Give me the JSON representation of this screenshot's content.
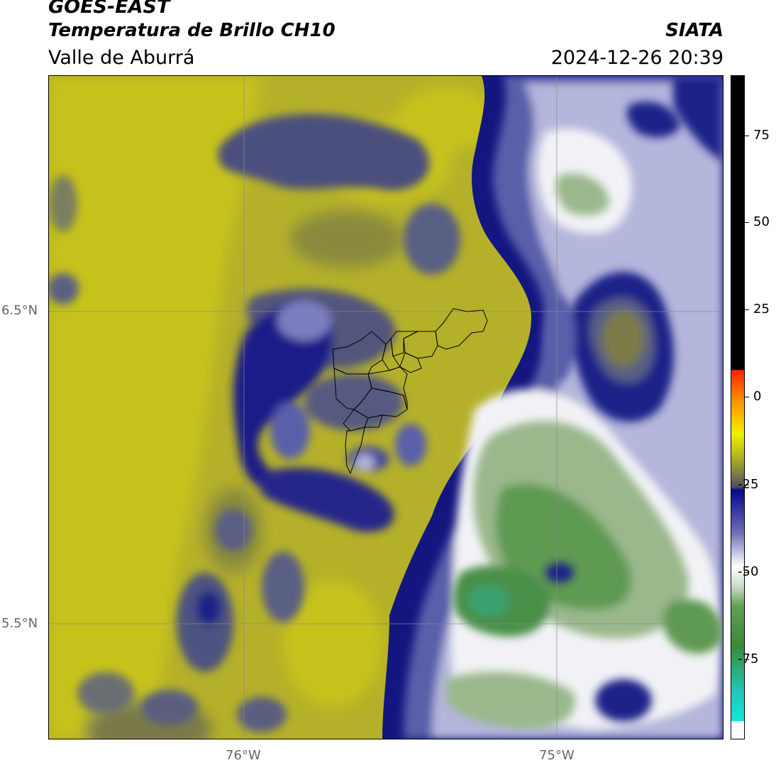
{
  "header": {
    "satellite": "GOES-EAST",
    "product": "Temperatura de Brillo CH10",
    "region": "Valle de Aburrá",
    "organization": "SIATA",
    "datetime": "2024-12-26 20:39"
  },
  "map": {
    "lat_ticks": [
      "6.5°N",
      "5.5°N"
    ],
    "lon_ticks": [
      "76°W",
      "75°W"
    ],
    "gridlines": true,
    "overlay": "municipality-boundaries"
  },
  "colorbar": {
    "ticks": [
      "75",
      "50",
      "25",
      "0",
      "-25",
      "-50",
      "-75"
    ],
    "range": [
      -92,
      92
    ],
    "colors": {
      "black": "#000000",
      "red": "#ff2000",
      "orange": "#ff9000",
      "yellow": "#f0f000",
      "olive": "#a8a828",
      "navy": "#08088a",
      "lavender": "#c8c8e8",
      "white": "#ffffff",
      "green": "#3a8a3a",
      "cyan": "#10e8d8"
    }
  },
  "palette": {
    "olive_light": "#c4c01c",
    "olive_mid": "#a8a832",
    "olive_dark": "#7c7c48",
    "slate": "#4a4e80",
    "navy": "#14167e",
    "blue_mid": "#5a5eaa",
    "lavender": "#b6b8dc",
    "white": "#f4f4f8",
    "green_light": "#9ab88c",
    "green_mid": "#5e9a52",
    "green_dark": "#3a8a46",
    "teal": "#38a070"
  }
}
